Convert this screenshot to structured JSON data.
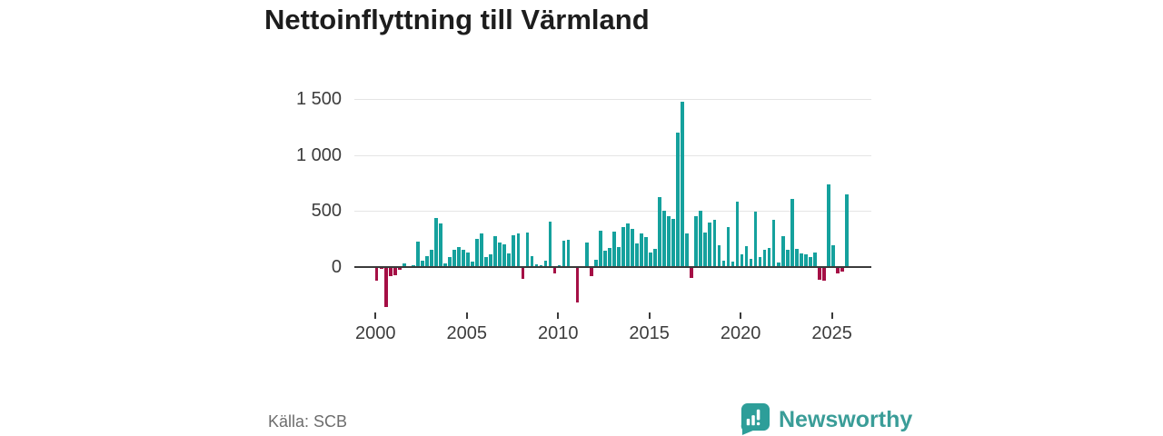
{
  "title": "Nettoinflyttning till Värmland",
  "source": "Källa: SCB",
  "logo": {
    "text": "Newsworthy"
  },
  "chart_data": {
    "type": "bar",
    "title": "Nettoinflyttning till Värmland",
    "xlabel": "",
    "ylabel": "",
    "frequency": "quarterly",
    "x_start": "2000-Q1",
    "x_tick_years": [
      2000,
      2005,
      2010,
      2015,
      2020,
      2025
    ],
    "x_tick_labels": [
      "2000",
      "2005",
      "2010",
      "2015",
      "2020",
      "2025"
    ],
    "y_tick_values": [
      1500,
      1000,
      500,
      0
    ],
    "y_tick_labels": [
      "1 500",
      "1 000",
      "500",
      "0"
    ],
    "ylim": [
      -400,
      1550
    ],
    "grid": "horizontal",
    "legend": "none",
    "series": [
      {
        "name": "Nettoinflyttning",
        "values": [
          -125,
          -15,
          -360,
          -85,
          -75,
          -25,
          35,
          10,
          15,
          230,
          60,
          100,
          155,
          440,
          385,
          30,
          90,
          155,
          180,
          155,
          130,
          50,
          250,
          300,
          90,
          115,
          275,
          220,
          205,
          120,
          285,
          300,
          -105,
          305,
          100,
          25,
          20,
          60,
          405,
          -60,
          15,
          235,
          245,
          5,
          -315,
          5,
          215,
          -85,
          65,
          320,
          145,
          170,
          315,
          180,
          360,
          385,
          340,
          210,
          300,
          265,
          130,
          165,
          620,
          505,
          450,
          430,
          1195,
          1470,
          300,
          -100,
          455,
          505,
          310,
          400,
          425,
          195,
          60,
          355,
          45,
          580,
          115,
          185,
          75,
          495,
          90,
          155,
          170,
          420,
          40,
          275,
          150,
          610,
          160,
          125,
          115,
          90,
          130,
          -110,
          -125,
          735,
          195,
          -55,
          -40,
          650
        ]
      }
    ],
    "colors": {
      "positive": "#15a19d",
      "negative": "#a50f45",
      "grid": "#e5e5e5",
      "zero_line": "#3a3a3a",
      "text": "#3c3c3c"
    }
  }
}
